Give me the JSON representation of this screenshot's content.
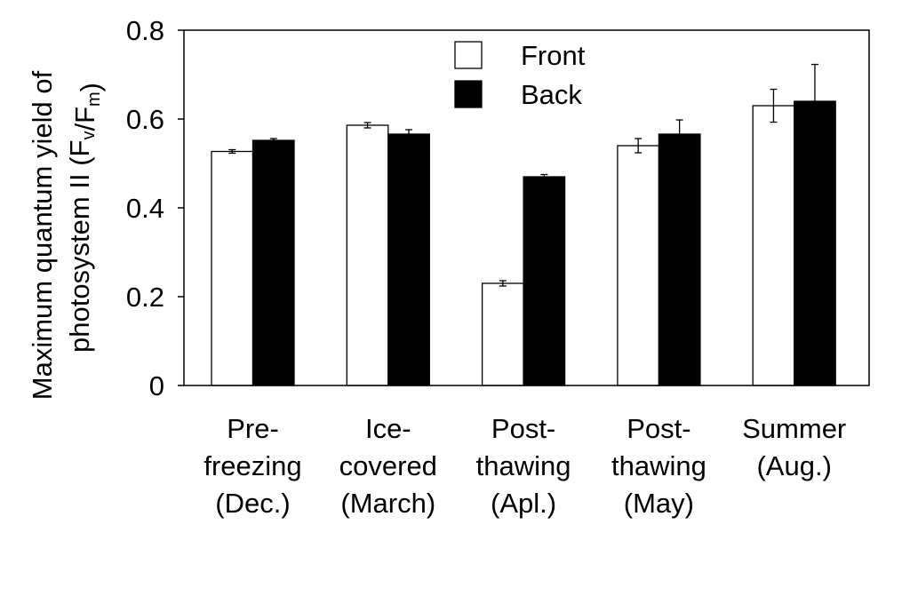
{
  "chart_data": {
    "type": "bar",
    "title": "",
    "xlabel": "",
    "ylabel_line1": "Maximum quantum yield of",
    "ylabel_line2": "photosystem II (F",
    "ylabel_sub_v": "v",
    "ylabel_mid": "/F",
    "ylabel_sub_m": "m",
    "ylabel_end": ")",
    "ylim": [
      0,
      0.8
    ],
    "yticks": [
      "0",
      "0.2",
      "0.4",
      "0.6",
      "0.8"
    ],
    "ytick_values": [
      0,
      0.2,
      0.4,
      0.6,
      0.8
    ],
    "categories": [
      [
        "Pre-",
        "freezing",
        "(Dec.)"
      ],
      [
        "Ice-",
        "covered",
        "(March)"
      ],
      [
        "Post-",
        "thawing",
        "(Apl.)"
      ],
      [
        "Post-",
        "thawing",
        "(May)"
      ],
      [
        "Summer",
        "(Aug.)"
      ]
    ],
    "series": [
      {
        "name": "Front",
        "color": "#ffffff",
        "values": [
          0.527,
          0.586,
          0.23,
          0.54,
          0.63
        ],
        "errors": [
          0.004,
          0.006,
          0.006,
          0.016,
          0.037
        ]
      },
      {
        "name": "Back",
        "color": "#000000",
        "values": [
          0.552,
          0.566,
          0.47,
          0.566,
          0.64
        ],
        "errors": [
          0.004,
          0.01,
          0.005,
          0.032,
          0.083
        ]
      }
    ],
    "legend_position": "top-center",
    "grid": false
  }
}
